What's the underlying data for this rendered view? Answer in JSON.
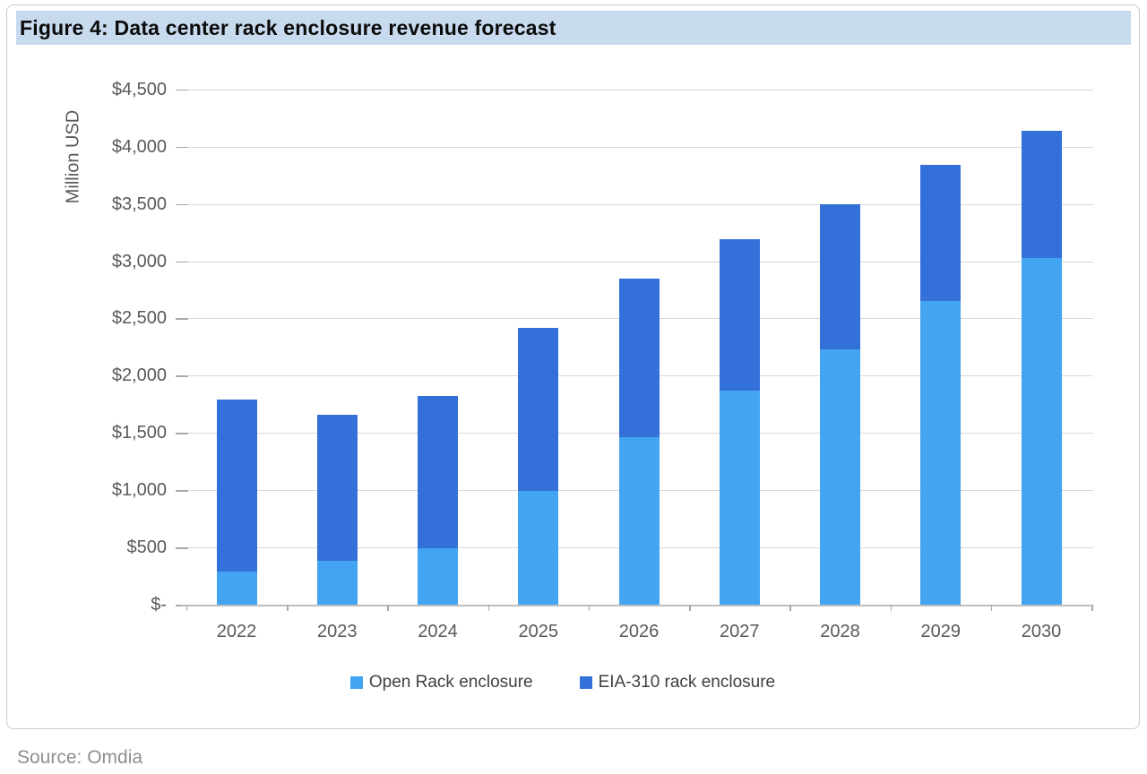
{
  "figure": {
    "title": "Figure 4: Data center rack enclosure revenue forecast",
    "source": "Source: Omdia"
  },
  "chart_data": {
    "type": "bar",
    "stacked": true,
    "title": "Figure 4: Data center rack enclosure revenue forecast",
    "xlabel": "",
    "ylabel": "Million USD",
    "categories": [
      "2022",
      "2023",
      "2024",
      "2025",
      "2026",
      "2027",
      "2028",
      "2029",
      "2030"
    ],
    "series": [
      {
        "name": "Open Rack enclosure",
        "color": "#43a4f1",
        "values": [
          290,
          380,
          490,
          990,
          1460,
          1870,
          2230,
          2650,
          3030
        ]
      },
      {
        "name": "EIA-310 rack enclosure",
        "color": "#3470d9",
        "values": [
          1500,
          1280,
          1330,
          1430,
          1390,
          1320,
          1270,
          1190,
          1110
        ]
      }
    ],
    "totals": [
      1790,
      1660,
      1820,
      2420,
      2850,
      3190,
      3500,
      3840,
      4140
    ],
    "ylim": [
      0,
      4500
    ],
    "ytick_step": 500,
    "ytick_labels": [
      "$-",
      "$500",
      "$1,000",
      "$1,500",
      "$2,000",
      "$2,500",
      "$3,000",
      "$3,500",
      "$4,000",
      "$4,500"
    ],
    "grid": true,
    "legend_position": "bottom",
    "units": "Million USD"
  },
  "colors": {
    "title_band_bg": "#c8daee",
    "open_rack": "#43a4f1",
    "eia_310": "#3470d9",
    "gridline": "#d8d8d8",
    "axis_text": "#595959",
    "legend_text": "#404040",
    "source_text": "#8e8e8e"
  }
}
